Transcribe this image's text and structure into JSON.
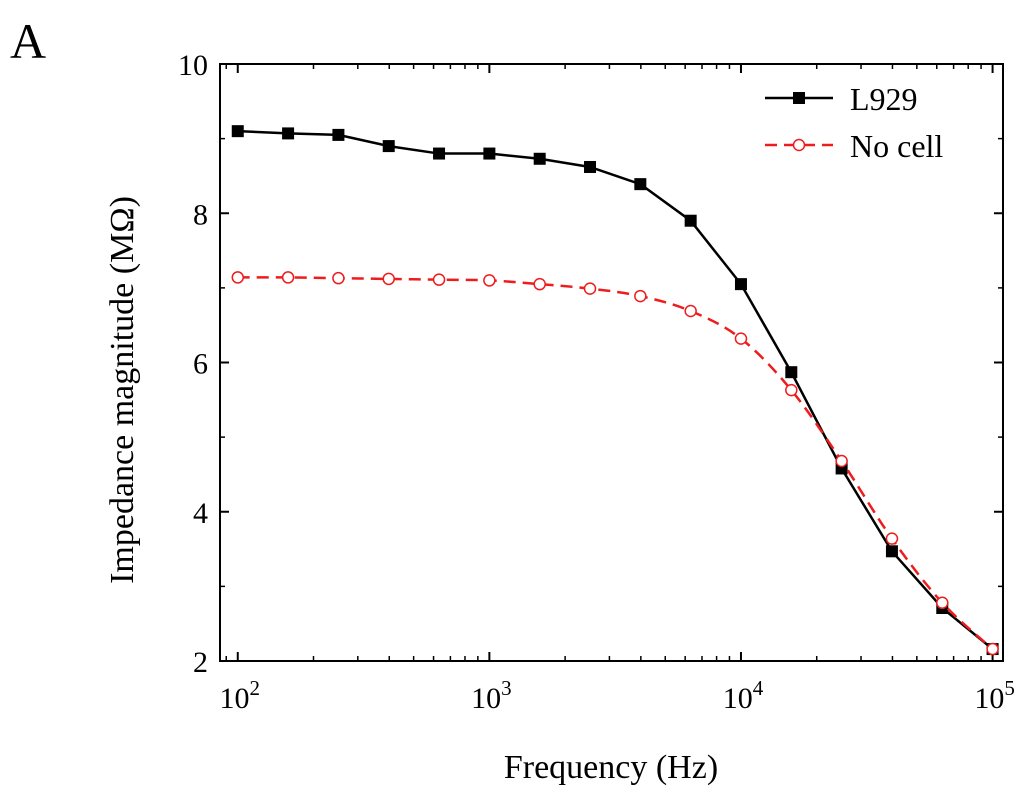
{
  "chart_data": {
    "type": "line",
    "panel_label": "A",
    "title": "",
    "xlabel": "Frequency (Hz)",
    "ylabel": "Impedance magnitude (MΩ)",
    "x_scale": "log",
    "xlim": [
      85,
      110000
    ],
    "ylim": [
      2,
      10
    ],
    "x_ticks": [
      {
        "value": 100,
        "base": "10",
        "exp": "2"
      },
      {
        "value": 1000,
        "base": "10",
        "exp": "3"
      },
      {
        "value": 10000,
        "base": "10",
        "exp": "4"
      },
      {
        "value": 100000,
        "base": "10",
        "exp": "5"
      }
    ],
    "y_ticks": [
      2,
      4,
      6,
      8,
      10
    ],
    "grid": false,
    "legend_position": "top-right",
    "series": [
      {
        "name": "L929",
        "color": "#000000",
        "line_style": "solid",
        "marker": "filled-square",
        "x": [
          100,
          158.5,
          251.2,
          398.1,
          631,
          1000,
          1585,
          2512,
          3981,
          6310,
          10000,
          15850,
          25120,
          39810,
          63100,
          100000
        ],
        "values": [
          9.1,
          9.07,
          9.05,
          8.9,
          8.8,
          8.8,
          8.73,
          8.62,
          8.39,
          7.9,
          7.05,
          5.87,
          4.58,
          3.47,
          2.71,
          2.16
        ]
      },
      {
        "name": "No cell",
        "color": "#ee1c1c",
        "line_style": "dashed",
        "marker": "open-circle",
        "x": [
          100,
          158.5,
          251.2,
          398.1,
          631,
          1000,
          1585,
          2512,
          3981,
          6310,
          10000,
          15850,
          25120,
          39810,
          63100,
          100000
        ],
        "values": [
          7.14,
          7.14,
          7.13,
          7.12,
          7.11,
          7.1,
          7.05,
          6.99,
          6.89,
          6.69,
          6.32,
          5.63,
          4.68,
          3.64,
          2.78,
          2.16
        ]
      }
    ]
  }
}
